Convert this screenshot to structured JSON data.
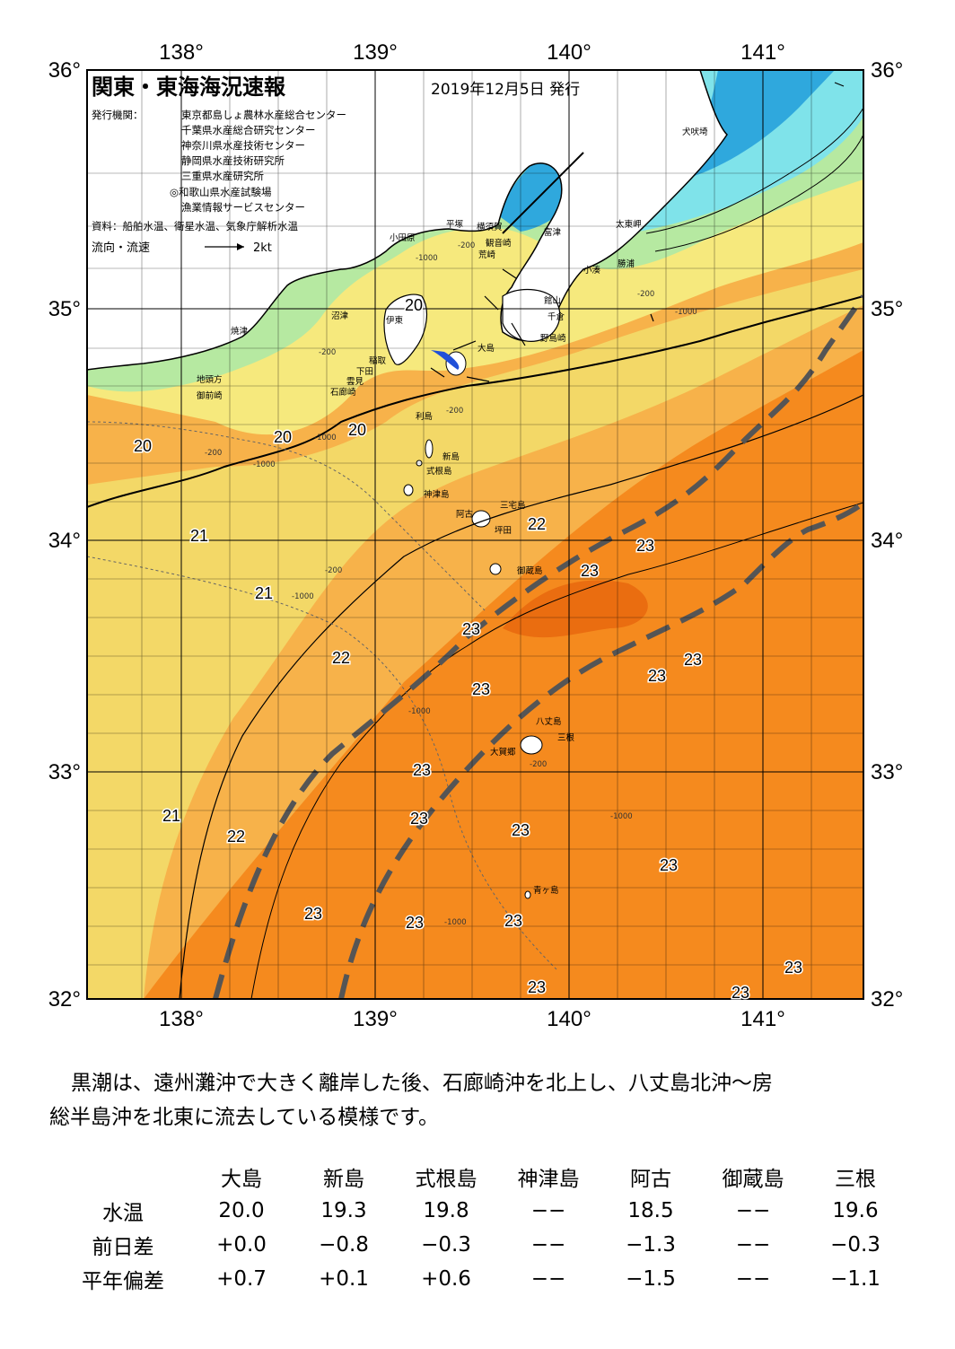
{
  "header": {
    "title": "関東・東海海況速報",
    "issue_date": "2019年12月5日 発行",
    "agency_label": "発行機関：",
    "agencies": [
      "東京都島しょ農林水産総合センター",
      "千葉県水産総合研究センター",
      "神奈川県水産技術センター",
      "静岡県水産技術研究所",
      "三重県水産研究所",
      "◎和歌山県水産試験場",
      "漁業情報サービスセンター"
    ],
    "sources": "資料：船舶水温、衛星水温、気象庁解析水温",
    "current_legend_label": "流向・流速",
    "current_legend_scale": "2kt"
  },
  "axes": {
    "lon_ticks": [
      "138°",
      "139°",
      "140°",
      "141°"
    ],
    "lat_ticks": [
      "36°",
      "35°",
      "34°",
      "33°",
      "32°"
    ],
    "lon_range": [
      137.5,
      141.5
    ],
    "lat_range": [
      32.0,
      36.0
    ]
  },
  "colors": {
    "land": "#ffffff",
    "coast_cold": "#2fa8dd",
    "coast_cool": "#7fe3ea",
    "shelf_green": "#b6e9a1",
    "warm_yellow": "#f6e97d",
    "mid_orange": "#f7b24a",
    "kuroshio_orange": "#f58a1e",
    "core_orange": "#ea6d10",
    "kuroshio_axis_line": "#555555"
  },
  "place_names": [
    {
      "id": "inubosaki",
      "text": "犬吠埼"
    },
    {
      "id": "taitomisaki",
      "text": "太東岬"
    },
    {
      "id": "katsuura",
      "text": "勝浦"
    },
    {
      "id": "kominato",
      "text": "小湊"
    },
    {
      "id": "futtsu",
      "text": "富津"
    },
    {
      "id": "kannonzaki",
      "text": "観音崎"
    },
    {
      "id": "yokosuka",
      "text": "横須賀"
    },
    {
      "id": "hiratsuka",
      "text": "平塚"
    },
    {
      "id": "odawara",
      "text": "小田原"
    },
    {
      "id": "araki",
      "text": "荒崎"
    },
    {
      "id": "tateyama",
      "text": "館山"
    },
    {
      "id": "chikura",
      "text": "千倉"
    },
    {
      "id": "nojimazaki",
      "text": "野島崎"
    },
    {
      "id": "numazu",
      "text": "沼津"
    },
    {
      "id": "ito",
      "text": "伊東"
    },
    {
      "id": "yaizu",
      "text": "焼津"
    },
    {
      "id": "inatori",
      "text": "稲取"
    },
    {
      "id": "shimoda",
      "text": "下田"
    },
    {
      "id": "kumomi",
      "text": "雲見"
    },
    {
      "id": "irozaki",
      "text": "石廊崎"
    },
    {
      "id": "jitokata",
      "text": "地頭方"
    },
    {
      "id": "omaezaki",
      "text": "御前崎"
    },
    {
      "id": "oshima",
      "text": "大島"
    },
    {
      "id": "toshima",
      "text": "利島"
    },
    {
      "id": "niijima",
      "text": "新島"
    },
    {
      "id": "shikinejima",
      "text": "式根島"
    },
    {
      "id": "kozushima",
      "text": "神津島"
    },
    {
      "id": "miyakejima",
      "text": "三宅島"
    },
    {
      "id": "ako",
      "text": "阿古"
    },
    {
      "id": "tsubota",
      "text": "坪田"
    },
    {
      "id": "mikurajima",
      "text": "御蔵島"
    },
    {
      "id": "hachijojima",
      "text": "八丈島"
    },
    {
      "id": "mitsune",
      "text": "三根"
    },
    {
      "id": "okago",
      "text": "大賀郷"
    },
    {
      "id": "aogashima",
      "text": "青ヶ島"
    }
  ],
  "isotherm_labels": [
    "20",
    "20",
    "20",
    "20",
    "20",
    "21",
    "21",
    "21",
    "22",
    "22",
    "22",
    "23",
    "23",
    "23",
    "23",
    "23",
    "23",
    "23",
    "23",
    "23",
    "23",
    "23",
    "23",
    "23",
    "23",
    "23",
    "23",
    "23"
  ],
  "depth_labels": [
    "-200",
    "-200",
    "-200",
    "-200",
    "-200",
    "-200",
    "-200",
    "-1000",
    "-1000",
    "-1000",
    "-1000",
    "-1000",
    "-1000",
    "-1000",
    "-1000"
  ],
  "summary": {
    "line1": "黒潮は、遠州灘沖で大きく離岸した後、石廊崎沖を北上し、八丈島北沖～房",
    "line2": "総半島沖を北東に流去している模様です。"
  },
  "table": {
    "columns": [
      "大島",
      "新島",
      "式根島",
      "神津島",
      "阿古",
      "御蔵島",
      "三根"
    ],
    "rows": [
      {
        "label": "水温",
        "values": [
          "20.0",
          "19.3",
          "19.8",
          "−−",
          "18.5",
          "−−",
          "19.6"
        ]
      },
      {
        "label": "前日差",
        "values": [
          "+0.0",
          "−0.8",
          "−0.3",
          "−−",
          "−1.3",
          "−−",
          "−0.3"
        ]
      },
      {
        "label": "平年偏差",
        "values": [
          "+0.7",
          "+0.1",
          "+0.6",
          "−−",
          "−1.5",
          "−−",
          "−1.1"
        ]
      }
    ]
  }
}
